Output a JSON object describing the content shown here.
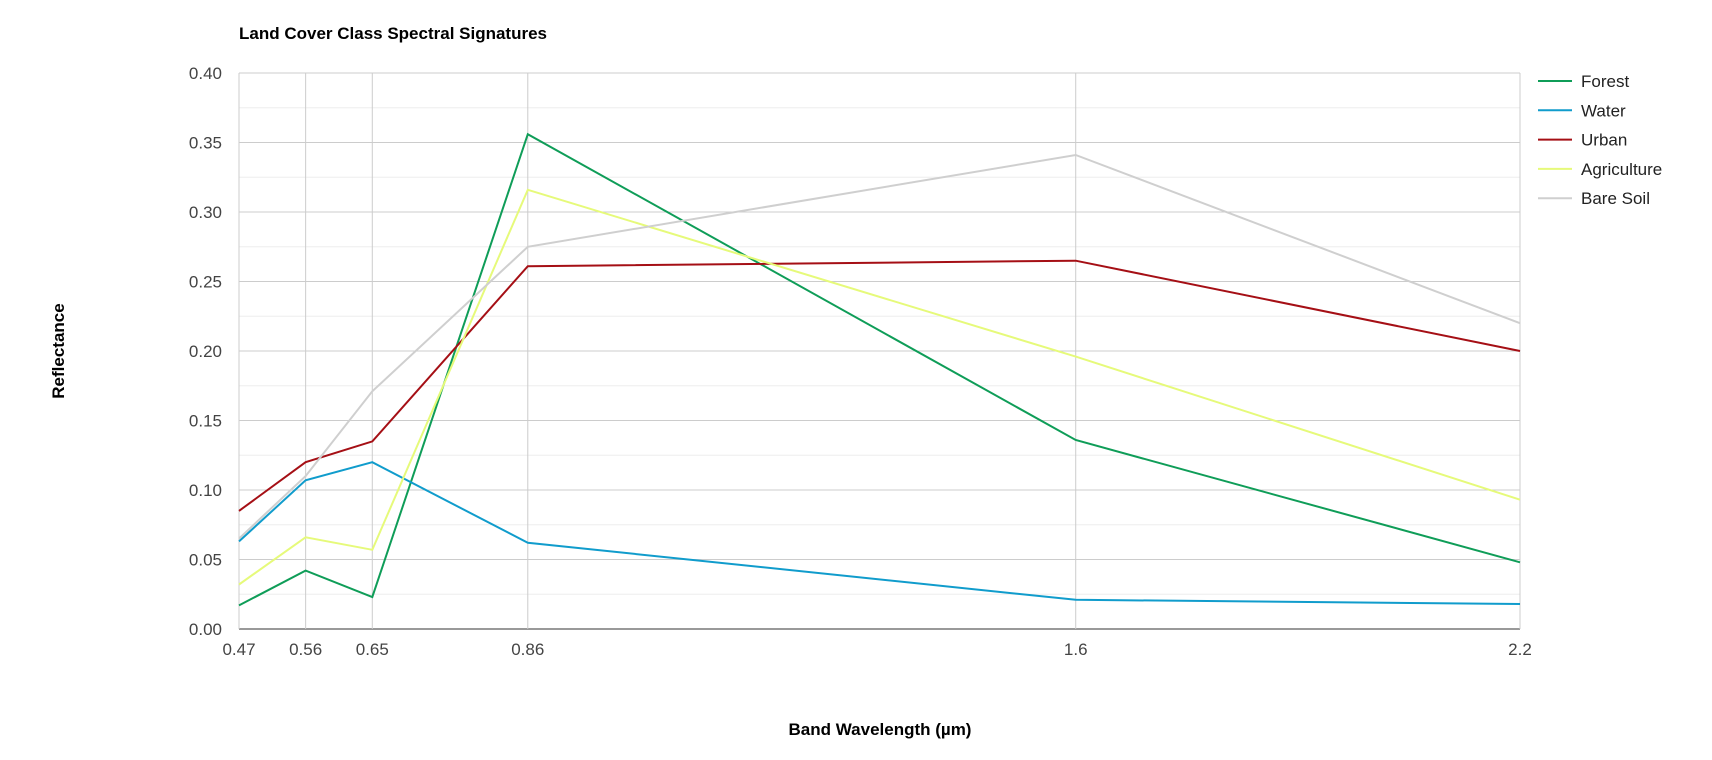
{
  "chart_data": {
    "type": "line",
    "title": "Land Cover Class Spectral Signatures",
    "xlabel": "Band Wavelength (µm)",
    "ylabel": "Reflectance",
    "x": [
      0.47,
      0.56,
      0.65,
      0.86,
      1.6,
      2.2
    ],
    "x_tick_labels": [
      "0.47",
      "0.56",
      "0.65",
      "0.86",
      "1.6",
      "2.2"
    ],
    "xlim": [
      0.47,
      2.2
    ],
    "ylim": [
      0,
      0.4
    ],
    "y_ticks": [
      "0.00",
      "0.05",
      "0.10",
      "0.15",
      "0.20",
      "0.25",
      "0.30",
      "0.35",
      "0.40"
    ],
    "grid": true,
    "legend_position": "right",
    "series": [
      {
        "name": "Forest",
        "color": "#0f9d58",
        "values": [
          0.017,
          0.042,
          0.023,
          0.356,
          0.136,
          0.048
        ]
      },
      {
        "name": "Water",
        "color": "#109ccc",
        "values": [
          0.063,
          0.107,
          0.12,
          0.062,
          0.021,
          0.018
        ]
      },
      {
        "name": "Urban",
        "color": "#a50f15",
        "values": [
          0.085,
          0.12,
          0.135,
          0.261,
          0.265,
          0.2
        ]
      },
      {
        "name": "Agriculture",
        "color": "#e6fa7a",
        "values": [
          0.032,
          0.066,
          0.057,
          0.316,
          0.196,
          0.093
        ]
      },
      {
        "name": "Bare Soil",
        "color": "#cfcfcf",
        "values": [
          0.065,
          0.11,
          0.171,
          0.275,
          0.341,
          0.22
        ]
      }
    ]
  }
}
